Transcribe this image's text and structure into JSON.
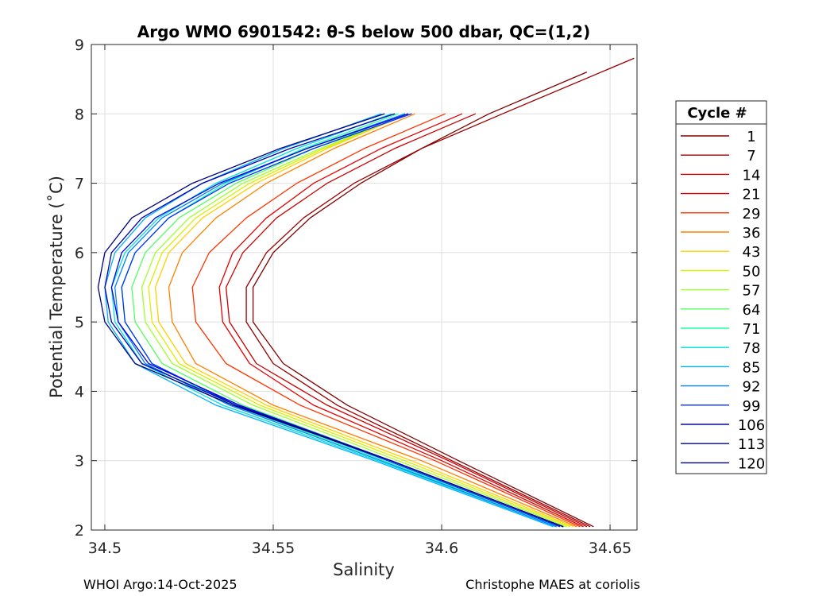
{
  "chart_data": {
    "type": "line",
    "title": "Argo WMO 6901542: θ-S below 500 dbar,  QC=(1,2)",
    "xlabel": "Salinity",
    "ylabel": "Potential Temperature (˚C)",
    "xlim": [
      34.496,
      34.658
    ],
    "ylim": [
      2,
      9
    ],
    "xticks": [
      34.5,
      34.55,
      34.6,
      34.65
    ],
    "xtick_labels": [
      "34.5",
      "34.55",
      "34.6",
      "34.65"
    ],
    "yticks": [
      2,
      3,
      4,
      5,
      6,
      7,
      8,
      9
    ],
    "ytick_labels": [
      "2",
      "3",
      "4",
      "5",
      "6",
      "7",
      "8",
      "9"
    ],
    "grid": true,
    "legend": {
      "title": "Cycle #",
      "placement": "outside-right",
      "entries": [
        {
          "label": "1",
          "color": "#7f0000"
        },
        {
          "label": "7",
          "color": "#9a0000"
        },
        {
          "label": "14",
          "color": "#c80000"
        },
        {
          "label": "21",
          "color": "#e50000"
        },
        {
          "label": "29",
          "color": "#ff3300"
        },
        {
          "label": "36",
          "color": "#ff8000"
        },
        {
          "label": "43",
          "color": "#ffd000"
        },
        {
          "label": "50",
          "color": "#d8f000"
        },
        {
          "label": "57",
          "color": "#a0ff30"
        },
        {
          "label": "64",
          "color": "#50ff60"
        },
        {
          "label": "71",
          "color": "#20ffa0"
        },
        {
          "label": "78",
          "color": "#00e0e0"
        },
        {
          "label": "85",
          "color": "#00b0ff"
        },
        {
          "label": "92",
          "color": "#0080ff"
        },
        {
          "label": "99",
          "color": "#0030ff"
        },
        {
          "label": "106",
          "color": "#0000e0"
        },
        {
          "label": "113",
          "color": "#0000b0"
        },
        {
          "label": "120",
          "color": "#000080"
        }
      ]
    },
    "series": [
      {
        "name": "1",
        "color": "#7f0000",
        "theta": [
          2.05,
          3.0,
          3.8,
          4.4,
          5.0,
          5.5,
          6.0,
          6.5,
          7.0,
          7.5,
          8.0,
          8.6
        ],
        "salinity": [
          34.645,
          34.605,
          34.572,
          34.553,
          34.544,
          34.544,
          34.55,
          34.561,
          34.576,
          34.594,
          34.614,
          34.643
        ]
      },
      {
        "name": "7",
        "color": "#9a0000",
        "theta": [
          2.05,
          3.0,
          3.8,
          4.4,
          5.0,
          5.5,
          6.0,
          6.5,
          7.0,
          7.5,
          8.0,
          8.8
        ],
        "salinity": [
          34.644,
          34.603,
          34.569,
          34.55,
          34.542,
          34.542,
          34.548,
          34.559,
          34.574,
          34.594,
          34.618,
          34.657
        ]
      },
      {
        "name": "14",
        "color": "#c80000",
        "theta": [
          2.05,
          3.0,
          3.8,
          4.4,
          5.0,
          5.5,
          6.0,
          6.5,
          7.0,
          7.5,
          8.0
        ],
        "salinity": [
          34.643,
          34.602,
          34.566,
          34.545,
          34.537,
          34.536,
          34.541,
          34.551,
          34.566,
          34.586,
          34.61
        ]
      },
      {
        "name": "21",
        "color": "#e50000",
        "theta": [
          2.05,
          3.0,
          3.8,
          4.4,
          5.0,
          5.5,
          6.0,
          6.5,
          7.0,
          7.5,
          8.0
        ],
        "salinity": [
          34.642,
          34.6,
          34.562,
          34.543,
          34.535,
          34.534,
          34.538,
          34.548,
          34.562,
          34.582,
          34.606
        ]
      },
      {
        "name": "29",
        "color": "#ff3300",
        "theta": [
          2.05,
          3.0,
          3.8,
          4.4,
          5.0,
          5.5,
          6.0,
          6.5,
          7.0,
          7.5,
          8.0
        ],
        "salinity": [
          34.641,
          34.598,
          34.558,
          34.536,
          34.527,
          34.526,
          34.531,
          34.542,
          34.557,
          34.577,
          34.601
        ]
      },
      {
        "name": "36",
        "color": "#ff8000",
        "theta": [
          2.05,
          3.0,
          3.8,
          4.4,
          5.0,
          5.5,
          6.0,
          6.5,
          7.0,
          7.5,
          8.0
        ],
        "salinity": [
          34.64,
          34.594,
          34.55,
          34.527,
          34.52,
          34.519,
          34.523,
          34.533,
          34.548,
          34.568,
          34.592
        ]
      },
      {
        "name": "43",
        "color": "#ffd000",
        "theta": [
          2.05,
          3.0,
          3.8,
          4.4,
          5.0,
          5.5,
          6.0,
          6.5,
          7.0,
          7.5,
          8.0
        ],
        "salinity": [
          34.639,
          34.591,
          34.548,
          34.524,
          34.516,
          34.515,
          34.519,
          34.529,
          34.545,
          34.566,
          34.59
        ]
      },
      {
        "name": "50",
        "color": "#d8f000",
        "theta": [
          2.05,
          3.0,
          3.8,
          4.4,
          5.0,
          5.5,
          6.0,
          6.5,
          7.0,
          7.5,
          8.0
        ],
        "salinity": [
          34.638,
          34.589,
          34.546,
          34.522,
          34.514,
          34.513,
          34.517,
          34.527,
          34.543,
          34.565,
          34.59
        ]
      },
      {
        "name": "57",
        "color": "#a0ff30",
        "theta": [
          2.05,
          3.0,
          3.8,
          4.4,
          5.0,
          5.5,
          6.0,
          6.5,
          7.0,
          7.5,
          8.0
        ],
        "salinity": [
          34.637,
          34.587,
          34.544,
          34.52,
          34.512,
          34.511,
          34.515,
          34.525,
          34.541,
          34.564,
          34.59
        ]
      },
      {
        "name": "64",
        "color": "#50ff60",
        "theta": [
          2.05,
          3.0,
          3.8,
          4.4,
          5.0,
          5.5,
          6.0,
          6.5,
          7.0,
          7.5,
          8.0
        ],
        "salinity": [
          34.636,
          34.585,
          34.541,
          34.517,
          34.509,
          34.508,
          34.512,
          34.522,
          34.539,
          34.562,
          34.589
        ]
      },
      {
        "name": "71",
        "color": "#20ffa0",
        "theta": [
          2.05,
          3.0,
          3.8,
          4.4,
          5.0,
          5.5,
          6.0,
          6.5,
          7.0,
          7.5,
          8.0
        ],
        "salinity": [
          34.635,
          34.583,
          34.538,
          34.514,
          34.506,
          34.505,
          34.509,
          34.519,
          34.536,
          34.559,
          34.587
        ]
      },
      {
        "name": "78",
        "color": "#00e0e0",
        "theta": [
          2.05,
          3.0,
          3.8,
          4.4,
          5.0,
          5.5,
          6.0,
          6.5,
          7.0,
          7.5,
          8.0
        ],
        "salinity": [
          34.634,
          34.581,
          34.535,
          34.511,
          34.503,
          34.502,
          34.506,
          34.516,
          34.533,
          34.557,
          34.585
        ]
      },
      {
        "name": "85",
        "color": "#00b0ff",
        "theta": [
          2.05,
          3.0,
          3.8,
          4.4,
          5.0,
          5.5,
          6.0,
          6.5,
          7.0,
          7.5,
          8.0
        ],
        "salinity": [
          34.633,
          34.58,
          34.533,
          34.509,
          34.501,
          34.5,
          34.503,
          34.512,
          34.529,
          34.553,
          34.582
        ]
      },
      {
        "name": "92",
        "color": "#0080ff",
        "theta": [
          2.05,
          3.0,
          3.8,
          4.4,
          5.0,
          5.5,
          6.0,
          6.5,
          7.0,
          7.5,
          8.0
        ],
        "salinity": [
          34.634,
          34.582,
          34.537,
          34.512,
          34.504,
          34.503,
          34.507,
          34.517,
          34.535,
          34.56,
          34.589
        ]
      },
      {
        "name": "99",
        "color": "#0030ff",
        "theta": [
          2.05,
          3.0,
          3.8,
          4.4,
          5.0,
          5.5,
          6.0,
          6.5,
          7.0,
          7.5,
          8.0
        ],
        "salinity": [
          34.635,
          34.584,
          34.539,
          34.514,
          34.506,
          34.505,
          34.509,
          34.519,
          34.537,
          34.562,
          34.591
        ]
      },
      {
        "name": "106",
        "color": "#0000e0",
        "theta": [
          2.05,
          3.0,
          3.8,
          4.4,
          5.0,
          5.5,
          6.0,
          6.5,
          7.0,
          7.5,
          8.0
        ],
        "salinity": [
          34.636,
          34.585,
          34.54,
          34.513,
          34.504,
          34.502,
          34.505,
          34.515,
          34.534,
          34.56,
          34.59
        ]
      },
      {
        "name": "113",
        "color": "#0000b0",
        "theta": [
          2.05,
          3.0,
          3.8,
          4.4,
          5.0,
          5.5,
          6.0,
          6.5,
          7.0,
          7.5,
          8.0
        ],
        "salinity": [
          34.636,
          34.585,
          34.539,
          34.511,
          34.502,
          34.5,
          34.502,
          34.511,
          34.529,
          34.555,
          34.586
        ]
      },
      {
        "name": "120",
        "color": "#000080",
        "theta": [
          2.05,
          3.0,
          3.8,
          4.4,
          5.0,
          5.5,
          6.0,
          6.5,
          7.0,
          7.5,
          8.0
        ],
        "salinity": [
          34.636,
          34.585,
          34.538,
          34.509,
          34.5,
          34.498,
          34.5,
          34.508,
          34.526,
          34.552,
          34.583
        ]
      }
    ]
  },
  "footer": {
    "left": "WHOI Argo:14-Oct-2025",
    "right": "Christophe MAES at coriolis"
  }
}
